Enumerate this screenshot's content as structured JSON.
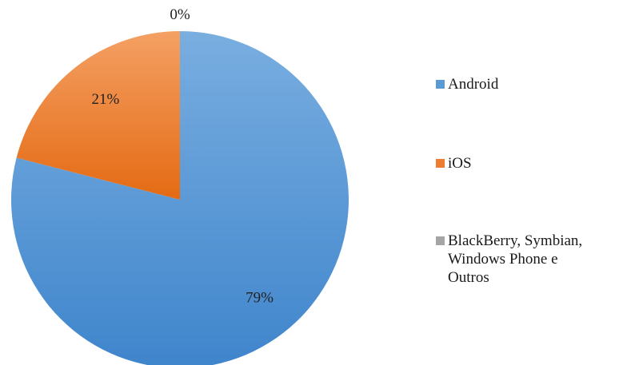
{
  "chart_data": {
    "type": "pie",
    "title": "",
    "legend_position": "right",
    "series": [
      {
        "slices": [
          {
            "label": "Android",
            "value": 79,
            "display": "79%",
            "color": "#5B9BD5"
          },
          {
            "label": "iOS",
            "value": 21,
            "display": "21%",
            "color": "#ED7D31"
          },
          {
            "label": "BlackBerry, Symbian, Windows Phone e Outros",
            "value": 0,
            "display": "0%",
            "color": "#A5A5A5"
          }
        ]
      }
    ]
  }
}
